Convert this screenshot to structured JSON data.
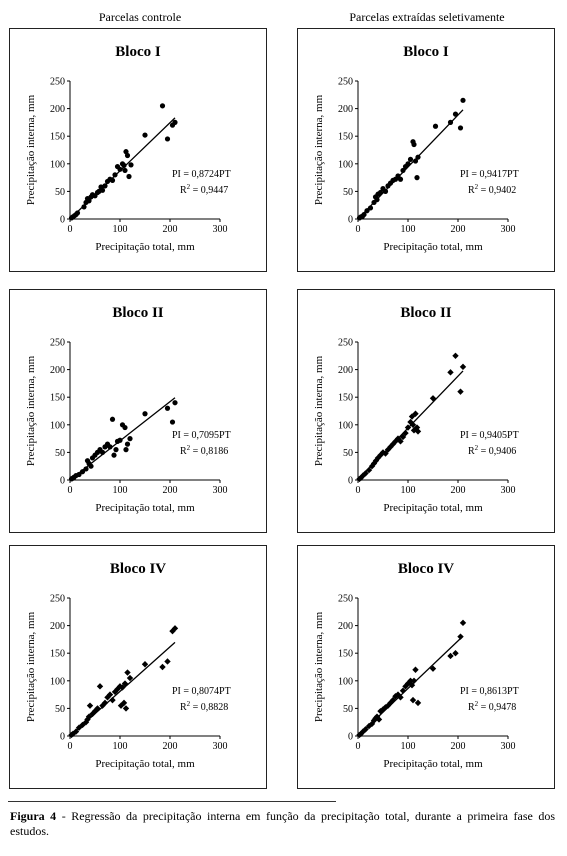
{
  "columns": {
    "left": "Parcelas controle",
    "right": "Parcelas extraídas seletivamente"
  },
  "caption": {
    "label": "Figura 4",
    "text": " - Regressão da precipitação interna em função da precipitação total, durante a primeira fase dos estudos."
  },
  "chart_data": [
    {
      "type": "scatter",
      "title": "Bloco I",
      "marker": "circle",
      "xlabel": "Precipitação total, mm",
      "ylabel": "Precipitação interna, mm",
      "xlim": [
        0,
        300
      ],
      "ylim": [
        0,
        250
      ],
      "xticks": [
        0,
        100,
        200,
        300
      ],
      "yticks": [
        0,
        50,
        100,
        150,
        200,
        250
      ],
      "equation": "PI = 0,8724PT",
      "r2_label": "R",
      "r2_value": " = 0,9447",
      "fit_slope": 0.8724,
      "points": [
        [
          3,
          2
        ],
        [
          6,
          4
        ],
        [
          9,
          6
        ],
        [
          12,
          8
        ],
        [
          15,
          11
        ],
        [
          28,
          22
        ],
        [
          32,
          30
        ],
        [
          35,
          37
        ],
        [
          38,
          33
        ],
        [
          42,
          40
        ],
        [
          45,
          44
        ],
        [
          50,
          42
        ],
        [
          55,
          48
        ],
        [
          58,
          50
        ],
        [
          62,
          58
        ],
        [
          65,
          52
        ],
        [
          70,
          60
        ],
        [
          75,
          68
        ],
        [
          80,
          72
        ],
        [
          85,
          70
        ],
        [
          90,
          80
        ],
        [
          95,
          95
        ],
        [
          100,
          90
        ],
        [
          105,
          100
        ],
        [
          108,
          97
        ],
        [
          110,
          88
        ],
        [
          112,
          122
        ],
        [
          115,
          115
        ],
        [
          118,
          77
        ],
        [
          122,
          98
        ],
        [
          150,
          152
        ],
        [
          185,
          205
        ],
        [
          195,
          145
        ],
        [
          205,
          170
        ],
        [
          210,
          175
        ]
      ]
    },
    {
      "type": "scatter",
      "title": "Bloco I",
      "marker": "circle",
      "xlabel": "Precipitação total, mm",
      "ylabel": "Precipitação interna, mm",
      "xlim": [
        0,
        300
      ],
      "ylim": [
        0,
        250
      ],
      "xticks": [
        0,
        100,
        200,
        300
      ],
      "yticks": [
        0,
        50,
        100,
        150,
        200,
        250
      ],
      "equation": "PI = 0,9417PT",
      "r2_label": "R",
      "r2_value": " = 0,9402",
      "fit_slope": 0.9417,
      "points": [
        [
          3,
          2
        ],
        [
          6,
          4
        ],
        [
          9,
          5
        ],
        [
          12,
          8
        ],
        [
          18,
          15
        ],
        [
          25,
          20
        ],
        [
          32,
          30
        ],
        [
          35,
          40
        ],
        [
          38,
          35
        ],
        [
          40,
          45
        ],
        [
          45,
          48
        ],
        [
          50,
          55
        ],
        [
          55,
          50
        ],
        [
          60,
          60
        ],
        [
          65,
          65
        ],
        [
          70,
          70
        ],
        [
          75,
          72
        ],
        [
          80,
          78
        ],
        [
          85,
          72
        ],
        [
          90,
          88
        ],
        [
          95,
          95
        ],
        [
          100,
          100
        ],
        [
          105,
          108
        ],
        [
          110,
          140
        ],
        [
          112,
          135
        ],
        [
          115,
          105
        ],
        [
          118,
          75
        ],
        [
          120,
          112
        ],
        [
          155,
          168
        ],
        [
          185,
          175
        ],
        [
          195,
          190
        ],
        [
          205,
          165
        ],
        [
          210,
          215
        ]
      ]
    },
    {
      "type": "scatter",
      "title": "Bloco II",
      "marker": "circle",
      "xlabel": "Precipitação total, mm",
      "ylabel": "Precipitação interna, mm",
      "xlim": [
        0,
        300
      ],
      "ylim": [
        0,
        250
      ],
      "xticks": [
        0,
        100,
        200,
        300
      ],
      "yticks": [
        0,
        50,
        100,
        150,
        200,
        250
      ],
      "equation": "PI = 0,7095PT",
      "r2_label": "R",
      "r2_value": " = 0,8186",
      "fit_slope": 0.7095,
      "points": [
        [
          3,
          2
        ],
        [
          5,
          3
        ],
        [
          8,
          5
        ],
        [
          12,
          8
        ],
        [
          18,
          10
        ],
        [
          25,
          15
        ],
        [
          32,
          20
        ],
        [
          35,
          35
        ],
        [
          38,
          30
        ],
        [
          42,
          25
        ],
        [
          45,
          40
        ],
        [
          50,
          45
        ],
        [
          55,
          50
        ],
        [
          60,
          55
        ],
        [
          65,
          50
        ],
        [
          70,
          60
        ],
        [
          75,
          65
        ],
        [
          80,
          60
        ],
        [
          85,
          110
        ],
        [
          88,
          45
        ],
        [
          92,
          55
        ],
        [
          95,
          70
        ],
        [
          100,
          72
        ],
        [
          105,
          100
        ],
        [
          110,
          95
        ],
        [
          112,
          55
        ],
        [
          115,
          65
        ],
        [
          120,
          75
        ],
        [
          150,
          120
        ],
        [
          195,
          130
        ],
        [
          205,
          105
        ],
        [
          210,
          140
        ]
      ]
    },
    {
      "type": "scatter",
      "title": "Bloco II",
      "marker": "diamond",
      "xlabel": "Precipitação total, mm",
      "ylabel": "Precipitação interna, mm",
      "xlim": [
        0,
        300
      ],
      "ylim": [
        0,
        250
      ],
      "xticks": [
        0,
        100,
        200,
        300
      ],
      "yticks": [
        0,
        50,
        100,
        150,
        200,
        250
      ],
      "equation": "PI = 0,9405PT",
      "r2_label": "R",
      "r2_value": " = 0,9406",
      "fit_slope": 0.9405,
      "points": [
        [
          3,
          2
        ],
        [
          6,
          4
        ],
        [
          10,
          8
        ],
        [
          15,
          12
        ],
        [
          22,
          18
        ],
        [
          28,
          25
        ],
        [
          32,
          30
        ],
        [
          36,
          35
        ],
        [
          40,
          40
        ],
        [
          45,
          45
        ],
        [
          50,
          50
        ],
        [
          55,
          48
        ],
        [
          60,
          55
        ],
        [
          65,
          60
        ],
        [
          70,
          65
        ],
        [
          75,
          70
        ],
        [
          80,
          75
        ],
        [
          85,
          70
        ],
        [
          90,
          78
        ],
        [
          95,
          85
        ],
        [
          100,
          95
        ],
        [
          105,
          105
        ],
        [
          108,
          115
        ],
        [
          110,
          100
        ],
        [
          112,
          90
        ],
        [
          115,
          120
        ],
        [
          118,
          95
        ],
        [
          120,
          88
        ],
        [
          150,
          148
        ],
        [
          185,
          195
        ],
        [
          195,
          225
        ],
        [
          205,
          160
        ],
        [
          210,
          205
        ]
      ]
    },
    {
      "type": "scatter",
      "title": "Bloco IV",
      "marker": "diamond",
      "xlabel": "Precipitação total, mm",
      "ylabel": "Precipitação interna, mm",
      "xlim": [
        0,
        300
      ],
      "ylim": [
        0,
        250
      ],
      "xticks": [
        0,
        100,
        200,
        300
      ],
      "yticks": [
        0,
        50,
        100,
        150,
        200,
        250
      ],
      "equation": "PI = 0,8074PT",
      "r2_label": "R",
      "r2_value": " = 0,8828",
      "fit_slope": 0.8074,
      "points": [
        [
          3,
          2
        ],
        [
          6,
          4
        ],
        [
          12,
          8
        ],
        [
          18,
          15
        ],
        [
          25,
          20
        ],
        [
          32,
          25
        ],
        [
          35,
          30
        ],
        [
          38,
          35
        ],
        [
          40,
          55
        ],
        [
          45,
          40
        ],
        [
          50,
          45
        ],
        [
          55,
          50
        ],
        [
          60,
          90
        ],
        [
          65,
          55
        ],
        [
          70,
          60
        ],
        [
          75,
          70
        ],
        [
          80,
          75
        ],
        [
          85,
          65
        ],
        [
          90,
          80
        ],
        [
          95,
          85
        ],
        [
          100,
          90
        ],
        [
          102,
          55
        ],
        [
          105,
          88
        ],
        [
          108,
          60
        ],
        [
          110,
          95
        ],
        [
          112,
          50
        ],
        [
          115,
          115
        ],
        [
          120,
          105
        ],
        [
          150,
          130
        ],
        [
          185,
          125
        ],
        [
          195,
          135
        ],
        [
          205,
          190
        ],
        [
          210,
          195
        ]
      ]
    },
    {
      "type": "scatter",
      "title": "Bloco IV",
      "marker": "diamond",
      "xlabel": "Precipitação total, mm",
      "ylabel": "Precipitação interna, mm",
      "xlim": [
        0,
        300
      ],
      "ylim": [
        0,
        250
      ],
      "xticks": [
        0,
        100,
        200,
        300
      ],
      "yticks": [
        0,
        50,
        100,
        150,
        200,
        250
      ],
      "equation": "PI = 0,8613PT",
      "r2_label": "R",
      "r2_value": " = 0,9478",
      "fit_slope": 0.8613,
      "points": [
        [
          3,
          2
        ],
        [
          6,
          4
        ],
        [
          10,
          8
        ],
        [
          15,
          12
        ],
        [
          22,
          18
        ],
        [
          28,
          22
        ],
        [
          32,
          28
        ],
        [
          35,
          32
        ],
        [
          38,
          35
        ],
        [
          42,
          30
        ],
        [
          45,
          45
        ],
        [
          50,
          48
        ],
        [
          55,
          52
        ],
        [
          60,
          55
        ],
        [
          65,
          60
        ],
        [
          70,
          65
        ],
        [
          75,
          72
        ],
        [
          80,
          75
        ],
        [
          85,
          70
        ],
        [
          90,
          82
        ],
        [
          95,
          90
        ],
        [
          100,
          95
        ],
        [
          105,
          100
        ],
        [
          108,
          92
        ],
        [
          110,
          65
        ],
        [
          112,
          100
        ],
        [
          115,
          120
        ],
        [
          120,
          60
        ],
        [
          150,
          122
        ],
        [
          185,
          145
        ],
        [
          195,
          150
        ],
        [
          205,
          180
        ],
        [
          210,
          205
        ]
      ]
    }
  ]
}
